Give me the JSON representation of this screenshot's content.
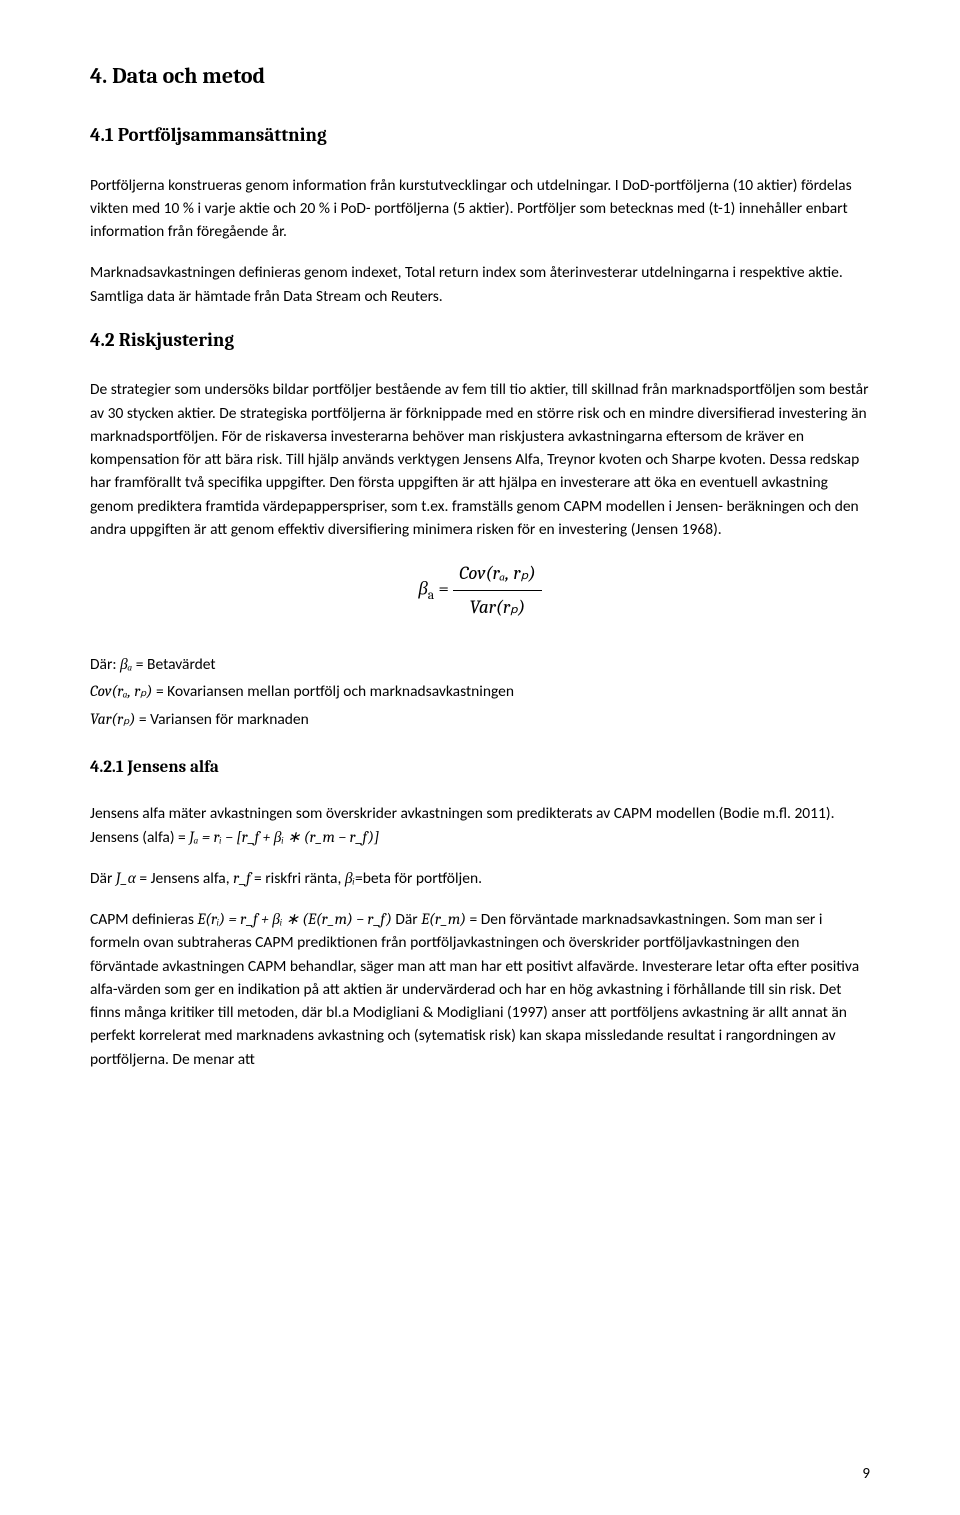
{
  "page_number": "9",
  "h_section": "4. Data och metod",
  "h_sub_41": "4.1 Portföljsammansättning",
  "p_41_a": "Portföljerna konstrueras genom information från kurstutvecklingar och utdelningar. I DoD-portföljerna (10 aktier) fördelas vikten med 10 % i varje aktie och 20 % i PoD- portföljerna (5 aktier). Portföljer som betecknas med (t-1) innehåller enbart information från föregående år.",
  "p_41_b": "Marknadsavkastningen definieras genom indexet, Total return index som återinvesterar utdelningarna i respektive aktie. Samtliga data är hämtade från Data Stream och Reuters.",
  "h_sub_42": "4.2 Riskjustering",
  "p_42_a": "De strategier som undersöks bildar portföljer bestående av fem till tio aktier, till skillnad från marknadsportföljen som består av 30 stycken aktier. De strategiska portföljerna är förknippade med en större risk och en mindre diversifierad investering än marknadsportföljen. För de riskaversa investerarna behöver man riskjustera avkastningarna eftersom de kräver en kompensation för att bära risk. Till hjälp används verktygen Jensens Alfa, Treynor kvoten och Sharpe kvoten. Dessa redskap har framförallt två specifika uppgifter. Den första uppgiften är att hjälpa en investerare att öka en eventuell avkastning genom prediktera framtida värdepapperspriser, som t.ex. framställs genom CAPM modellen i Jensen- beräkningen och den andra uppgiften är att genom effektiv diversifiering minimera risken för en investering (Jensen 1968).",
  "eq_beta_lhs": "β",
  "eq_beta_sub": "a",
  "eq_beta_eq": " = ",
  "eq_beta_num": "Cov(rₐ, rₚ)",
  "eq_beta_den": "Var(rₚ)",
  "defs_where": "Där: ",
  "defs_beta": "βₐ",
  "defs_beta_txt": " = Betavärdet",
  "defs_cov": "Cov(rₐ, rₚ)",
  "defs_cov_txt": " = Kovariansen mellan portfölj och marknadsavkastningen",
  "defs_var": "Var(rₚ)",
  "defs_var_txt": " = Variansen för marknaden",
  "h_subsub_421": "4.2.1 Jensens alfa",
  "p_421_a_pre": "Jensens alfa mäter avkastningen som överskrider avkastningen som predikterats av CAPM modellen (Bodie m.fl. 2011). Jensens (alfa) = ",
  "p_421_a_math": "Jₐ =  rᵢ  −  [r_f  +  βᵢ  ∗  (r_m − r_f)]",
  "p_421_b_pre": "Där ",
  "p_421_b_m1": " J_α",
  "p_421_b_t1": " = Jensens alfa, ",
  "p_421_b_m2": "r_f",
  "p_421_b_t2": " = riskfri ränta, ",
  "p_421_b_m3": "βᵢ",
  "p_421_b_t3": "=beta för portföljen.",
  "p_421_c_pre": "CAPM definieras ",
  "p_421_c_m1": "E(rᵢ)  =  r_f + βᵢ ∗ (E(r_m) − r_f)",
  "p_421_c_mid": " Där ",
  "p_421_c_m2": "E(r_m)",
  "p_421_c_post": " = Den förväntade marknadsavkastningen. Som man ser i formeln ovan subtraheras CAPM prediktionen från portföljavkastningen och överskrider portföljavkastningen den förväntade avkastningen CAPM behandlar, säger man att man har ett positivt alfavärde. Investerare letar ofta efter positiva alfa-värden som ger en indikation på att aktien är undervärderad och har en hög avkastning i förhållande till sin risk. Det finns många kritiker till metoden, där bl.a Modigliani & Modigliani (1997) anser att portföljens avkastning är allt annat än perfekt korrelerat med marknadens avkastning och (sytematisk risk) kan skapa missledande resultat i rangordningen av portföljerna. De menar att"
}
